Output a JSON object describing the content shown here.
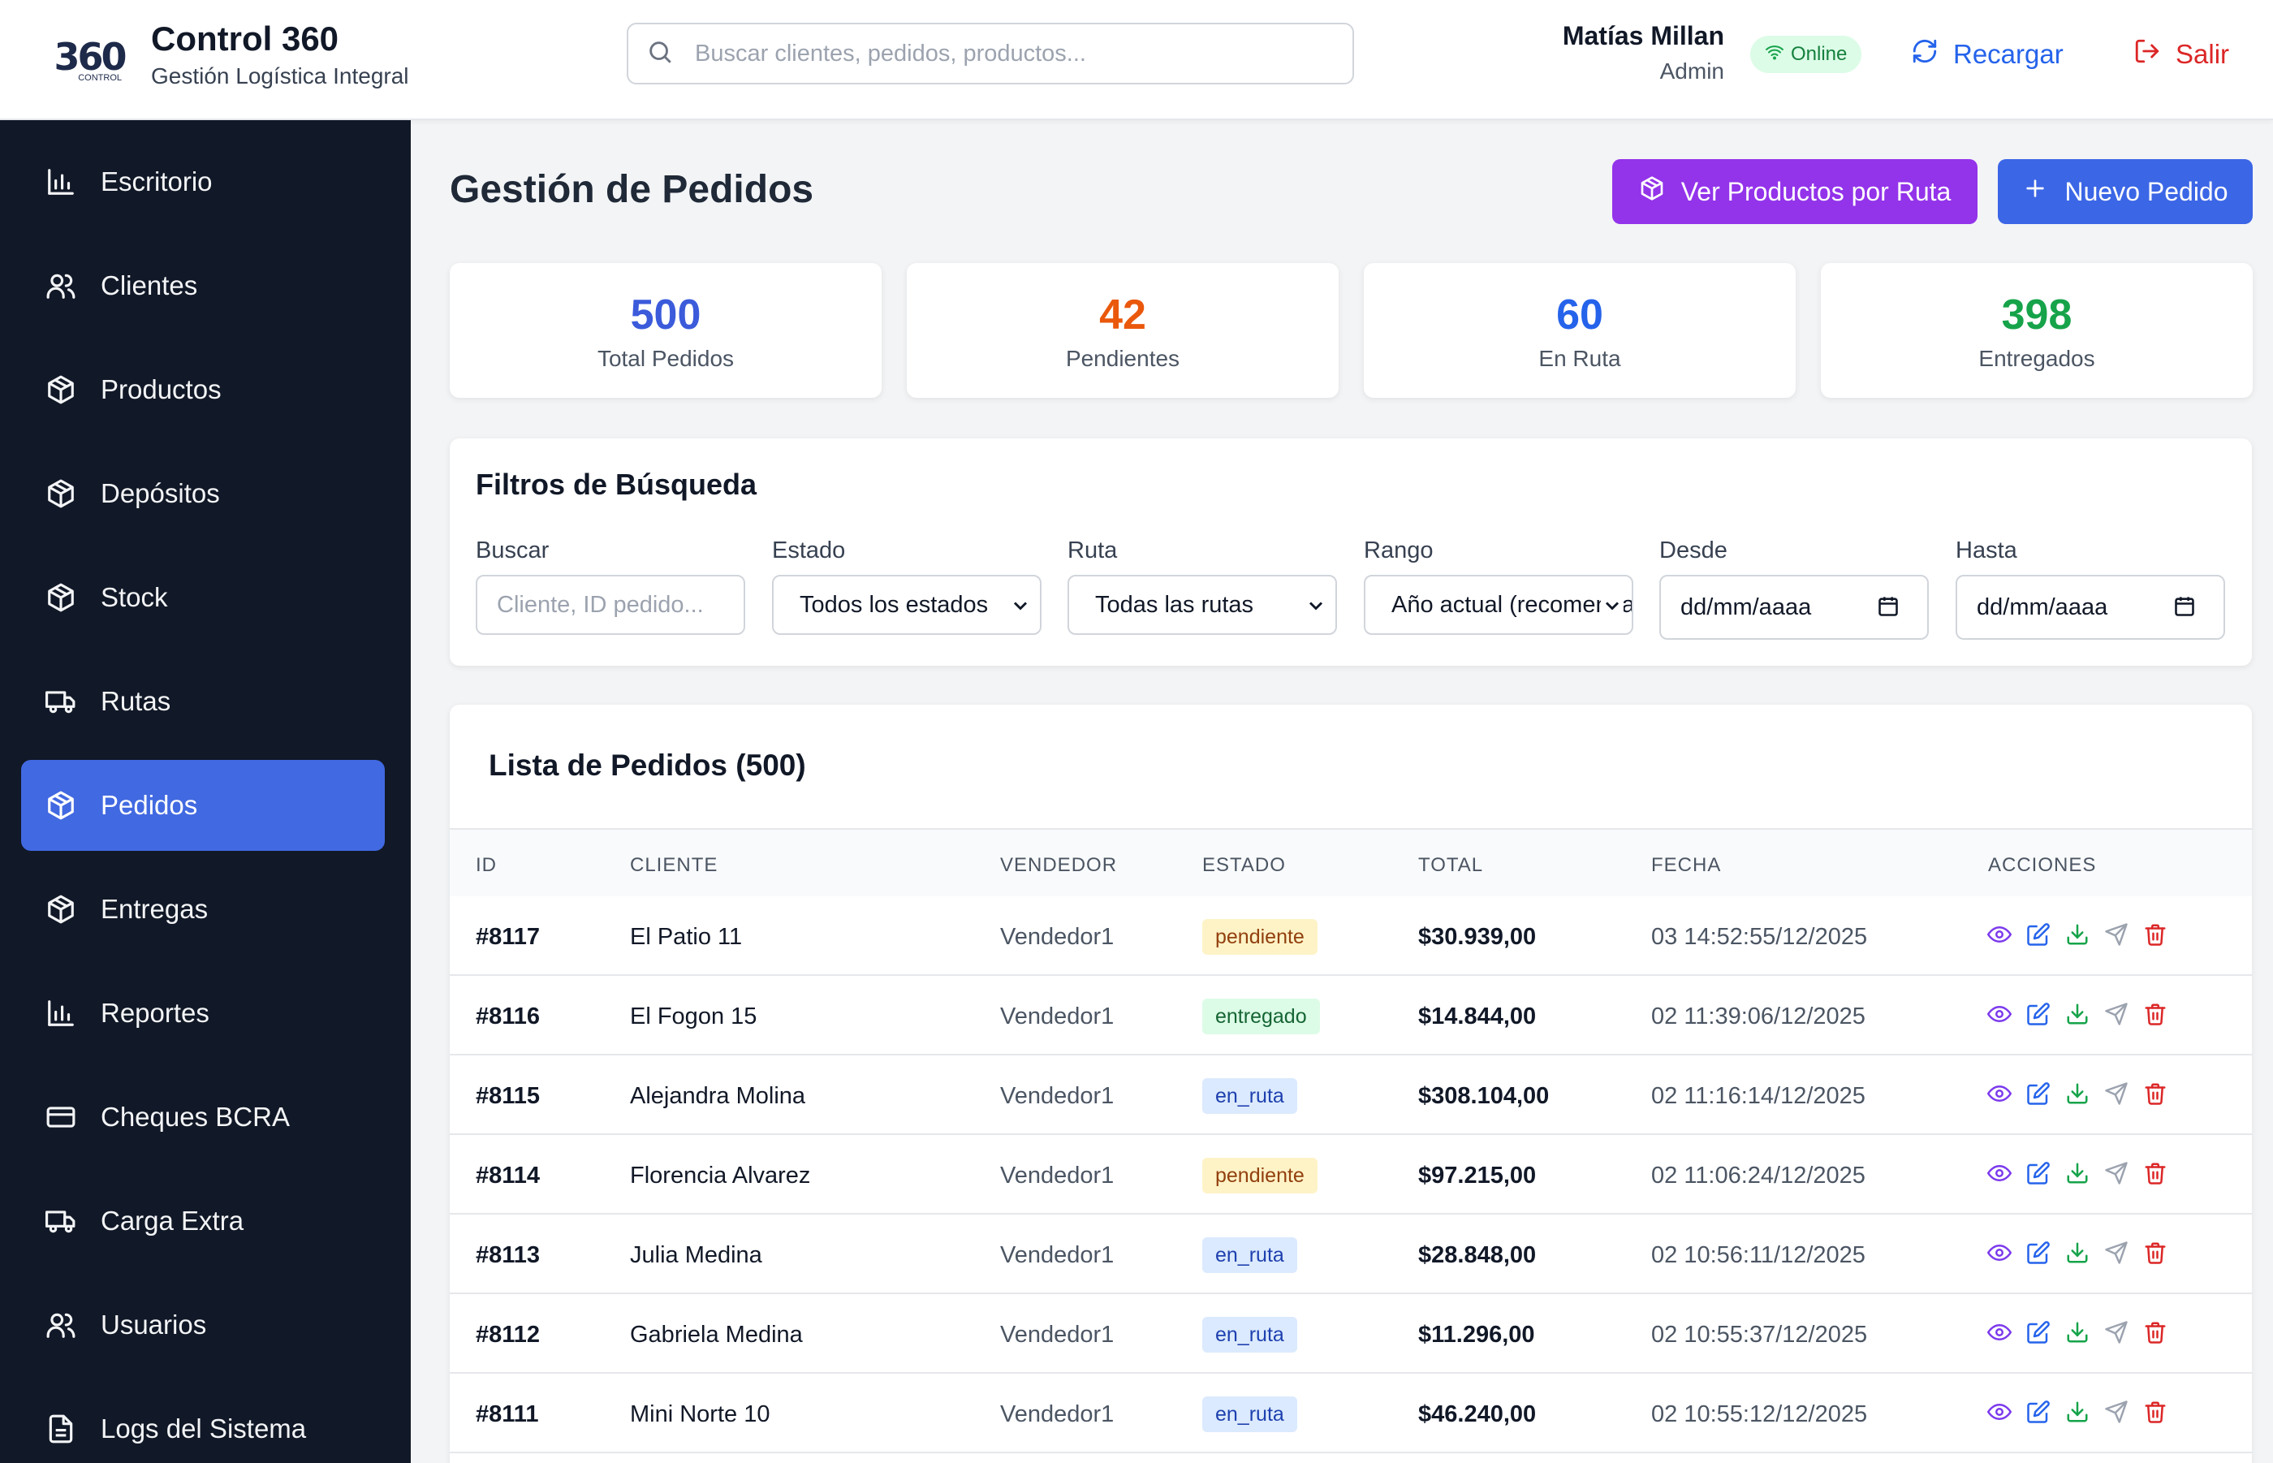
{
  "header": {
    "logo_text": "360",
    "logo_sub": "CONTROL",
    "brand_title": "Control 360",
    "brand_subtitle": "Gestión Logística Integral",
    "search_placeholder": "Buscar clientes, pedidos, productos...",
    "user_name": "Matías Millan",
    "user_role": "Admin",
    "status": "Online",
    "reload_label": "Recargar",
    "logout_label": "Salir"
  },
  "sidebar": {
    "items": [
      {
        "label": "Escritorio",
        "icon": "bar-chart-icon"
      },
      {
        "label": "Clientes",
        "icon": "users-icon"
      },
      {
        "label": "Productos",
        "icon": "package-icon"
      },
      {
        "label": "Depósitos",
        "icon": "package-icon"
      },
      {
        "label": "Stock",
        "icon": "package-icon"
      },
      {
        "label": "Rutas",
        "icon": "truck-icon"
      },
      {
        "label": "Pedidos",
        "icon": "package-icon",
        "active": true
      },
      {
        "label": "Entregas",
        "icon": "package-icon"
      },
      {
        "label": "Reportes",
        "icon": "bar-chart-icon"
      },
      {
        "label": "Cheques BCRA",
        "icon": "credit-card-icon"
      },
      {
        "label": "Carga Extra",
        "icon": "truck-icon"
      },
      {
        "label": "Usuarios",
        "icon": "users-icon"
      },
      {
        "label": "Logs del Sistema",
        "icon": "file-text-icon"
      }
    ]
  },
  "main": {
    "title": "Gestión de Pedidos",
    "btn_products_by_route": "Ver Productos por Ruta",
    "btn_new_order": "Nuevo Pedido",
    "stats": [
      {
        "value": "500",
        "label": "Total Pedidos",
        "color": "#3b5bdb"
      },
      {
        "value": "42",
        "label": "Pendientes",
        "color": "#ea580c"
      },
      {
        "value": "60",
        "label": "En Ruta",
        "color": "#2563eb"
      },
      {
        "value": "398",
        "label": "Entregados",
        "color": "#16a34a"
      }
    ],
    "filters": {
      "title": "Filtros de Búsqueda",
      "buscar_label": "Buscar",
      "buscar_placeholder": "Cliente, ID pedido...",
      "estado_label": "Estado",
      "estado_value": "Todos los estados",
      "ruta_label": "Ruta",
      "ruta_value": "Todas las rutas",
      "rango_label": "Rango",
      "rango_value": "Año actual (recomendado)",
      "desde_label": "Desde",
      "desde_value": "dd/mm/aaaa",
      "hasta_label": "Hasta",
      "hasta_value": "dd/mm/aaaa"
    },
    "table": {
      "title": "Lista de Pedidos (500)",
      "columns": [
        "ID",
        "CLIENTE",
        "VENDEDOR",
        "ESTADO",
        "TOTAL",
        "FECHA",
        "ACCIONES"
      ],
      "rows": [
        {
          "id": "#8117",
          "cliente": "El Patio 11",
          "vendedor": "Vendedor1",
          "estado": "pendiente",
          "total": "$30.939,00",
          "fecha": "03 14:52:55/12/2025"
        },
        {
          "id": "#8116",
          "cliente": "El Fogon 15",
          "vendedor": "Vendedor1",
          "estado": "entregado",
          "total": "$14.844,00",
          "fecha": "02 11:39:06/12/2025"
        },
        {
          "id": "#8115",
          "cliente": "Alejandra Molina",
          "vendedor": "Vendedor1",
          "estado": "en_ruta",
          "total": "$308.104,00",
          "fecha": "02 11:16:14/12/2025"
        },
        {
          "id": "#8114",
          "cliente": "Florencia Alvarez",
          "vendedor": "Vendedor1",
          "estado": "pendiente",
          "total": "$97.215,00",
          "fecha": "02 11:06:24/12/2025"
        },
        {
          "id": "#8113",
          "cliente": "Julia Medina",
          "vendedor": "Vendedor1",
          "estado": "en_ruta",
          "total": "$28.848,00",
          "fecha": "02 10:56:11/12/2025"
        },
        {
          "id": "#8112",
          "cliente": "Gabriela Medina",
          "vendedor": "Vendedor1",
          "estado": "en_ruta",
          "total": "$11.296,00",
          "fecha": "02 10:55:37/12/2025"
        },
        {
          "id": "#8111",
          "cliente": "Mini Norte 10",
          "vendedor": "Vendedor1",
          "estado": "en_ruta",
          "total": "$46.240,00",
          "fecha": "02 10:55:12/12/2025"
        }
      ]
    }
  },
  "colors": {
    "sidebar_bg": "#111827",
    "active_nav": "#4169e1",
    "purple_button": "#9333ea",
    "blue_button": "#3b66e6",
    "view_icon": "#7c3aed",
    "edit_icon": "#2563eb",
    "download_icon": "#16a34a",
    "send_icon": "#9ca3af",
    "delete_icon": "#dc2626"
  }
}
